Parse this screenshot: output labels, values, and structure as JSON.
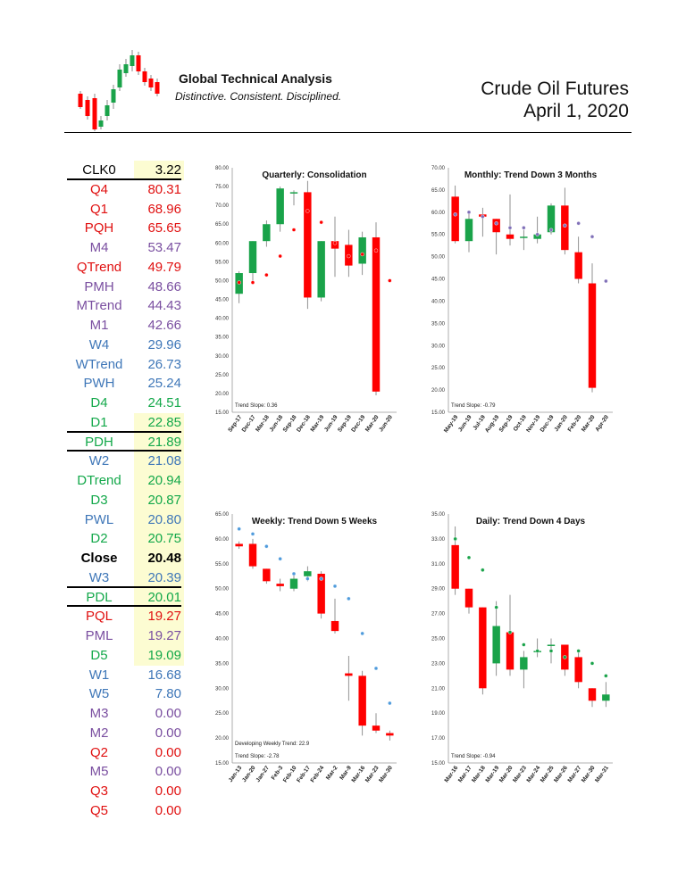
{
  "header": {
    "brand_name": "Global Technical Analysis",
    "brand_tagline": "Distinctive.  Consistent.  Disciplined.",
    "report_title": "Crude Oil Futures",
    "report_date": "April 1, 2020"
  },
  "colors": {
    "up": "#1aa34a",
    "down": "#ff0000",
    "highlight": "#fcfcd2",
    "red_text": "#e01010",
    "purple_text": "#7a4fa0",
    "blue_text": "#3f77b8",
    "green_text": "#13a84a",
    "black_text": "#000000"
  },
  "levels": [
    {
      "label": "CLK0",
      "value": "3.22",
      "color": "black",
      "highlight": true,
      "separator": true
    },
    {
      "label": "Q4",
      "value": "80.31",
      "color": "red"
    },
    {
      "label": "Q1",
      "value": "68.96",
      "color": "red"
    },
    {
      "label": "PQH",
      "value": "65.65",
      "color": "red"
    },
    {
      "label": "M4",
      "value": "53.47",
      "color": "purple"
    },
    {
      "label": "QTrend",
      "value": "49.79",
      "color": "red"
    },
    {
      "label": "PMH",
      "value": "48.66",
      "color": "purple"
    },
    {
      "label": "MTrend",
      "value": "44.43",
      "color": "purple"
    },
    {
      "label": "M1",
      "value": "42.66",
      "color": "purple"
    },
    {
      "label": "W4",
      "value": "29.96",
      "color": "blue"
    },
    {
      "label": "WTrend",
      "value": "26.73",
      "color": "blue"
    },
    {
      "label": "PWH",
      "value": "25.24",
      "color": "blue"
    },
    {
      "label": "D4",
      "value": "24.51",
      "color": "green"
    },
    {
      "label": "D1",
      "value": "22.85",
      "color": "green",
      "highlight": true,
      "separator": true
    },
    {
      "label": "PDH",
      "value": "21.89",
      "color": "green",
      "highlight": true,
      "separator": true
    },
    {
      "label": "W2",
      "value": "21.08",
      "color": "blue",
      "highlight": true
    },
    {
      "label": "DTrend",
      "value": "20.94",
      "color": "green",
      "highlight": true
    },
    {
      "label": "D3",
      "value": "20.87",
      "color": "green",
      "highlight": true
    },
    {
      "label": "PWL",
      "value": "20.80",
      "color": "blue",
      "highlight": true
    },
    {
      "label": "D2",
      "value": "20.75",
      "color": "green",
      "highlight": true
    },
    {
      "label": "Close",
      "value": "20.48",
      "color": "black",
      "bold": true,
      "highlight": true
    },
    {
      "label": "W3",
      "value": "20.39",
      "color": "blue",
      "highlight": true,
      "separator": true
    },
    {
      "label": "PDL",
      "value": "20.01",
      "color": "green",
      "highlight": true,
      "separator": true
    },
    {
      "label": "PQL",
      "value": "19.27",
      "color": "red",
      "highlight": true
    },
    {
      "label": "PML",
      "value": "19.27",
      "color": "purple",
      "highlight": true
    },
    {
      "label": "D5",
      "value": "19.09",
      "color": "green",
      "highlight": true
    },
    {
      "label": "W1",
      "value": "16.68",
      "color": "blue"
    },
    {
      "label": "W5",
      "value": "7.80",
      "color": "blue"
    },
    {
      "label": "M3",
      "value": "0.00",
      "color": "purple"
    },
    {
      "label": "M2",
      "value": "0.00",
      "color": "purple"
    },
    {
      "label": "Q2",
      "value": "0.00",
      "color": "red"
    },
    {
      "label": "M5",
      "value": "0.00",
      "color": "purple"
    },
    {
      "label": "Q3",
      "value": "0.00",
      "color": "red"
    },
    {
      "label": "Q5",
      "value": "0.00",
      "color": "red"
    }
  ],
  "chart_data": [
    {
      "type": "candlestick",
      "title": "Quarterly: Consolidation",
      "ylim": [
        15,
        80
      ],
      "yticks": [
        "15.00",
        "20.00",
        "25.00",
        "30.00",
        "35.00",
        "40.00",
        "45.00",
        "50.00",
        "55.00",
        "60.00",
        "65.00",
        "70.00",
        "75.00",
        "80.00"
      ],
      "annotations": [
        "Trend Slope: 0.36"
      ],
      "dot_color": "#ff0000",
      "candles": [
        {
          "x": "Sep-17",
          "o": 46.5,
          "h": 52.5,
          "l": 44,
          "c": 52,
          "dot": 49.5
        },
        {
          "x": "Dec-17",
          "o": 52,
          "h": 60.5,
          "l": 49,
          "c": 60.5,
          "dot": 49.5
        },
        {
          "x": "Mar-18",
          "o": 60.5,
          "h": 66,
          "l": 59,
          "c": 65,
          "dot": 51.5
        },
        {
          "x": "Jun-18",
          "o": 65,
          "h": 75,
          "l": 63,
          "c": 74.5,
          "dot": 56.5
        },
        {
          "x": "Sep-18",
          "o": 73.5,
          "h": 74,
          "l": 70,
          "c": 73.5,
          "dot": 63.5
        },
        {
          "x": "Dec-18",
          "o": 73.5,
          "h": 76.5,
          "l": 42.5,
          "c": 45.5,
          "dot": 68.5
        },
        {
          "x": "Mar-19",
          "o": 45.5,
          "h": 60.5,
          "l": 44.5,
          "c": 60.5,
          "dot": 65.5
        },
        {
          "x": "Jun-19",
          "o": 60.5,
          "h": 67,
          "l": 51,
          "c": 58.5,
          "dot": 60
        },
        {
          "x": "Sep-19",
          "o": 59.5,
          "h": 63.5,
          "l": 51,
          "c": 54,
          "dot": 56.5
        },
        {
          "x": "Dec-19",
          "o": 54.5,
          "h": 63,
          "l": 51.5,
          "c": 61.5,
          "dot": 57
        },
        {
          "x": "Mar-20",
          "o": 61.5,
          "h": 65.5,
          "l": 19.5,
          "c": 20.5,
          "dot": 58
        },
        {
          "x": "Jun-20",
          "dot": 50
        }
      ]
    },
    {
      "type": "candlestick",
      "title": "Monthly: Trend Down 3 Months",
      "ylim": [
        15,
        70
      ],
      "yticks": [
        "15.00",
        "20.00",
        "25.00",
        "30.00",
        "35.00",
        "40.00",
        "45.00",
        "50.00",
        "55.00",
        "60.00",
        "65.00",
        "70.00"
      ],
      "annotations": [
        "Trend Slope: -0.79"
      ],
      "dot_color": "#8070b8",
      "candles": [
        {
          "x": "May-19",
          "o": 63.5,
          "h": 66,
          "l": 53,
          "c": 53.5,
          "dot": 59.5
        },
        {
          "x": "Jun-19",
          "o": 53.5,
          "h": 60,
          "l": 51,
          "c": 58.5,
          "dot": 60
        },
        {
          "x": "Jul-19",
          "o": 59.5,
          "h": 61,
          "l": 54.5,
          "c": 59,
          "dot": 59
        },
        {
          "x": "Aug-19",
          "o": 58.5,
          "h": 58.5,
          "l": 50.5,
          "c": 55.5,
          "dot": 57.5
        },
        {
          "x": "Sep-19",
          "o": 55,
          "h": 64,
          "l": 52.5,
          "c": 54,
          "dot": 56.5
        },
        {
          "x": "Oct-19",
          "o": 54.5,
          "h": 56,
          "l": 51.5,
          "c": 54.5,
          "dot": 56.5
        },
        {
          "x": "Nov-19",
          "o": 54,
          "h": 59,
          "l": 53,
          "c": 55,
          "dot": 55
        },
        {
          "x": "Dec-19",
          "o": 55.5,
          "h": 62,
          "l": 55,
          "c": 61.5,
          "dot": 56
        },
        {
          "x": "Jan-20",
          "o": 61.5,
          "h": 65.5,
          "l": 50.5,
          "c": 51.5,
          "dot": 57
        },
        {
          "x": "Feb-20",
          "o": 51,
          "h": 54.5,
          "l": 44,
          "c": 45,
          "dot": 57.5
        },
        {
          "x": "Mar-20",
          "o": 44,
          "h": 48.5,
          "l": 19.5,
          "c": 20.5,
          "dot": 54.5
        },
        {
          "x": "Apr-20",
          "dot": 44.5
        }
      ]
    },
    {
      "type": "candlestick",
      "title": "Weekly: Trend Down 5 Weeks",
      "ylim": [
        15,
        65
      ],
      "yticks": [
        "15.00",
        "20.00",
        "25.00",
        "30.00",
        "35.00",
        "40.00",
        "45.00",
        "50.00",
        "55.00",
        "60.00",
        "65.00"
      ],
      "annotations": [
        "Developing Weekly Trend: 22.9",
        "Trend Slope: -2.78"
      ],
      "dot_color": "#4f9bdc",
      "candles": [
        {
          "x": "Jan-13",
          "o": 59,
          "h": 59.5,
          "l": 58,
          "c": 58.5,
          "dot": 62
        },
        {
          "x": "Jan-20",
          "o": 59,
          "h": 60,
          "l": 54,
          "c": 54.5,
          "dot": 61
        },
        {
          "x": "Jan-27",
          "o": 54,
          "h": 54,
          "l": 51,
          "c": 51.5,
          "dot": 58.5
        },
        {
          "x": "Feb-3",
          "o": 51,
          "h": 52,
          "l": 49.5,
          "c": 50.5,
          "dot": 56
        },
        {
          "x": "Feb-10",
          "o": 50,
          "h": 53,
          "l": 49.5,
          "c": 52,
          "dot": 53
        },
        {
          "x": "Feb-17",
          "o": 52.5,
          "h": 54.5,
          "l": 51.5,
          "c": 53.5,
          "dot": 52
        },
        {
          "x": "Feb-24",
          "o": 53,
          "h": 53.5,
          "l": 44,
          "c": 45,
          "dot": 52
        },
        {
          "x": "Mar-2",
          "o": 43.5,
          "h": 48,
          "l": 41,
          "c": 41.5,
          "dot": 50.5
        },
        {
          "x": "Mar-9",
          "o": 33,
          "h": 36.5,
          "l": 27.5,
          "c": 32.5,
          "dot": 48
        },
        {
          "x": "Mar-16",
          "o": 32.5,
          "h": 33.5,
          "l": 20.5,
          "c": 22.5,
          "dot": 41
        },
        {
          "x": "Mar-23",
          "o": 22.5,
          "h": 25,
          "l": 21,
          "c": 21.5,
          "dot": 34
        },
        {
          "x": "Mar-30",
          "o": 21,
          "h": 21.5,
          "l": 19.5,
          "c": 20.5,
          "dot": 27
        }
      ]
    },
    {
      "type": "candlestick",
      "title": "Daily: Trend Down 4 Days",
      "ylim": [
        15,
        35
      ],
      "yticks": [
        "15.00",
        "17.00",
        "19.00",
        "21.00",
        "23.00",
        "25.00",
        "27.00",
        "29.00",
        "31.00",
        "33.00",
        "35.00"
      ],
      "annotations": [
        "Trend Slope: -0.94"
      ],
      "dot_color": "#1aa34a",
      "candles": [
        {
          "x": "Mar-16",
          "o": 32.5,
          "h": 34,
          "l": 28.5,
          "c": 29,
          "dot": 33
        },
        {
          "x": "Mar-17",
          "o": 29,
          "h": 29,
          "l": 27,
          "c": 27.5,
          "dot": 31.5
        },
        {
          "x": "Mar-18",
          "o": 27.5,
          "h": 27.5,
          "l": 20.5,
          "c": 21,
          "dot": 30.5
        },
        {
          "x": "Mar-19",
          "o": 23,
          "h": 28,
          "l": 22,
          "c": 26,
          "dot": 27.5
        },
        {
          "x": "Mar-20",
          "o": 25.5,
          "h": 28.5,
          "l": 22,
          "c": 22.5,
          "dot": 25.5
        },
        {
          "x": "Mar-23",
          "o": 22.5,
          "h": 24,
          "l": 21,
          "c": 23.5,
          "dot": 24.5
        },
        {
          "x": "Mar-24",
          "o": 24,
          "h": 25,
          "l": 23.5,
          "c": 24,
          "dot": 24
        },
        {
          "x": "Mar-25",
          "o": 24.5,
          "h": 25,
          "l": 23,
          "c": 24.5,
          "dot": 24
        },
        {
          "x": "Mar-26",
          "o": 24.5,
          "h": 24.5,
          "l": 22,
          "c": 22.5,
          "dot": 23.5
        },
        {
          "x": "Mar-27",
          "o": 23.5,
          "h": 24,
          "l": 21,
          "c": 21.5,
          "dot": 24
        },
        {
          "x": "Mar-30",
          "o": 21,
          "h": 21,
          "l": 19.5,
          "c": 20,
          "dot": 23
        },
        {
          "x": "Mar-31",
          "o": 20,
          "h": 21.5,
          "l": 19.5,
          "c": 20.5,
          "dot": 22
        }
      ]
    }
  ]
}
